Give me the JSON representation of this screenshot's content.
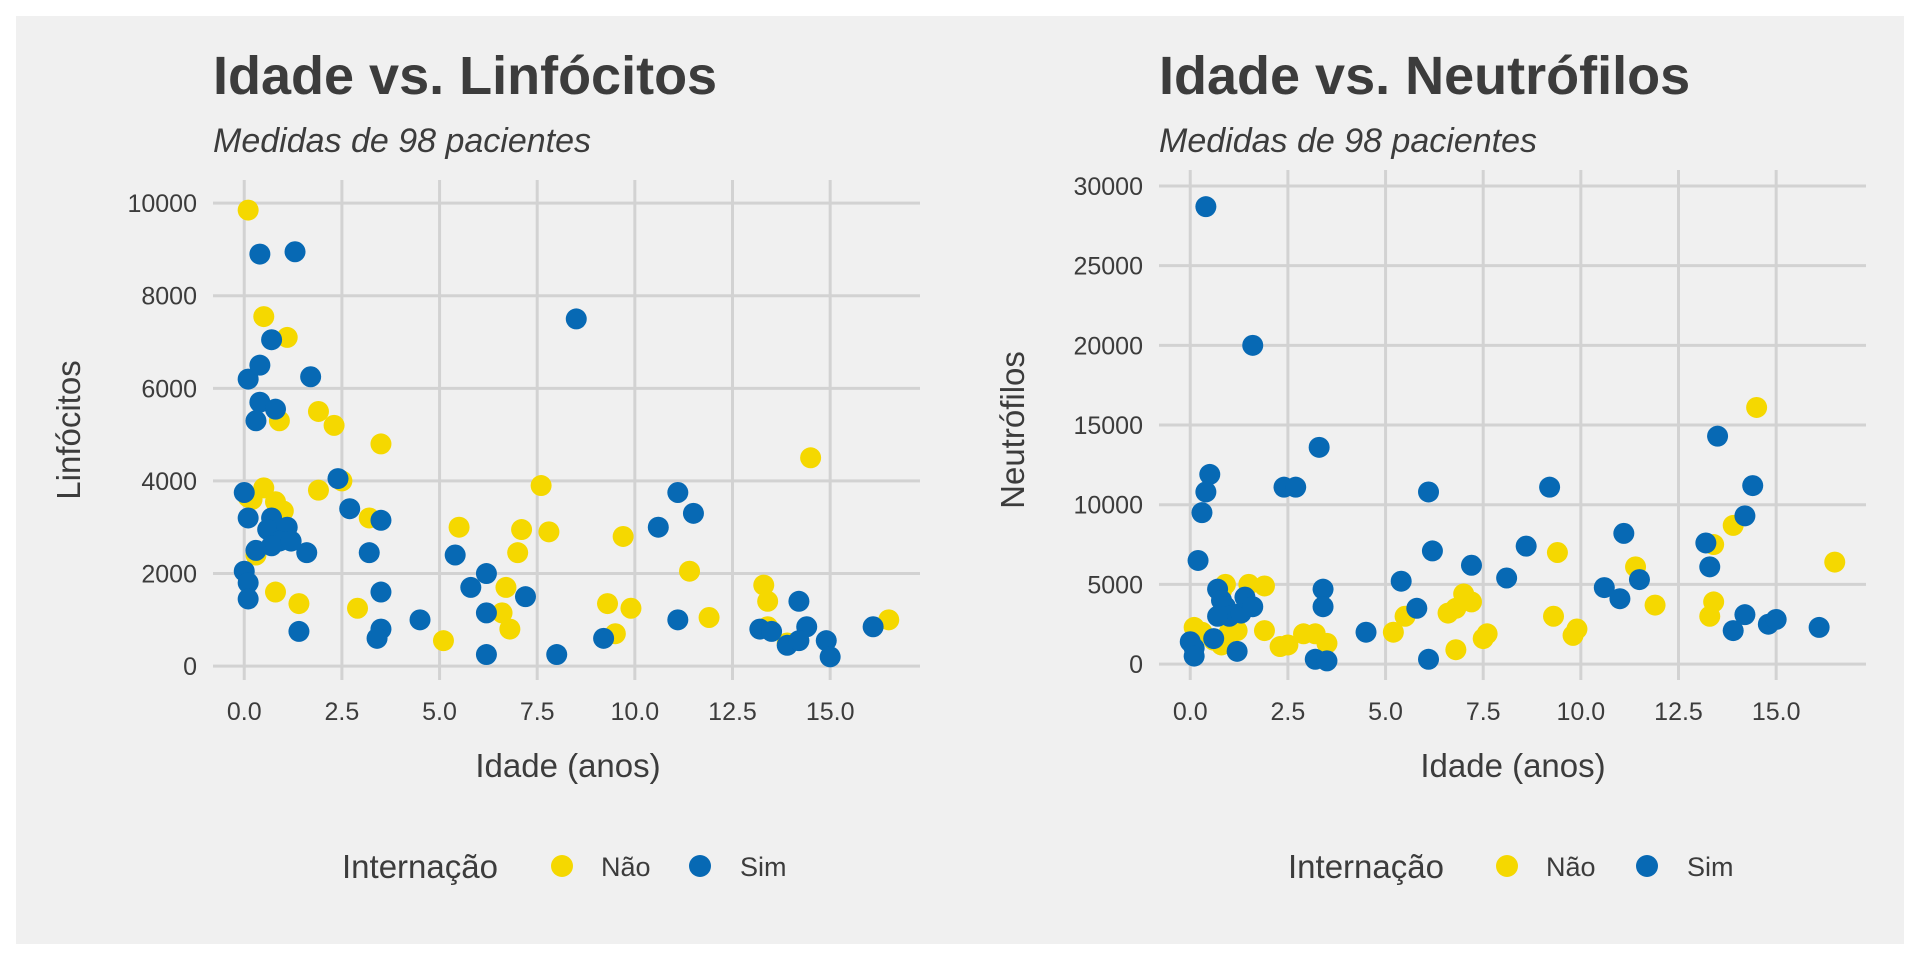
{
  "colors": {
    "background": "#f0f0f0",
    "grid": "#d2d2d2",
    "text": "#3c3c3c",
    "nao": "#f5d800",
    "sim": "#0769b4"
  },
  "legend": {
    "title": "Internação",
    "items": [
      "Não",
      "Sim"
    ]
  },
  "chart_data": [
    {
      "type": "scatter",
      "title": "Idade vs. Linfócitos",
      "subtitle": "Medidas de 98 pacientes",
      "xlabel": "Idade (anos)",
      "ylabel": "Linfócitos",
      "xlim": [
        -0.8,
        17.3
      ],
      "ylim": [
        -300,
        10500
      ],
      "xticks": [
        0,
        2.5,
        5,
        7.5,
        10,
        12.5,
        15
      ],
      "xtick_labels": [
        "0.0",
        "2.5",
        "5.0",
        "7.5",
        "10.0",
        "12.5",
        "15.0"
      ],
      "yticks": [
        0,
        2000,
        4000,
        6000,
        8000,
        10000
      ],
      "ytick_labels": [
        "0",
        "2000",
        "4000",
        "6000",
        "8000",
        "10000"
      ],
      "grid": true,
      "legend_position": "bottom",
      "series": [
        {
          "name": "Não",
          "color": "#f5d800",
          "points": [
            [
              0.1,
              9850
            ],
            [
              0.5,
              7550
            ],
            [
              1.1,
              7100
            ],
            [
              1.9,
              5500
            ],
            [
              2.3,
              5200
            ],
            [
              0.9,
              5300
            ],
            [
              3.5,
              4800
            ],
            [
              0.5,
              3850
            ],
            [
              0.1,
              3650
            ],
            [
              0.2,
              3600
            ],
            [
              0.8,
              3550
            ],
            [
              1.0,
              3350
            ],
            [
              2.5,
              4000
            ],
            [
              1.9,
              3800
            ],
            [
              3.2,
              3200
            ],
            [
              0.3,
              2400
            ],
            [
              0.8,
              1600
            ],
            [
              1.4,
              1350
            ],
            [
              2.9,
              1250
            ],
            [
              5.5,
              3000
            ],
            [
              7.6,
              3900
            ],
            [
              7.8,
              2900
            ],
            [
              7.1,
              2950
            ],
            [
              7.0,
              2450
            ],
            [
              6.7,
              1700
            ],
            [
              6.6,
              1150
            ],
            [
              6.8,
              800
            ],
            [
              5.1,
              550
            ],
            [
              9.3,
              1350
            ],
            [
              9.9,
              1250
            ],
            [
              9.7,
              2800
            ],
            [
              9.5,
              700
            ],
            [
              11.4,
              2050
            ],
            [
              11.9,
              1050
            ],
            [
              13.3,
              1750
            ],
            [
              13.4,
              1400
            ],
            [
              13.4,
              850
            ],
            [
              13.9,
              500
            ],
            [
              14.5,
              4500
            ],
            [
              16.5,
              1000
            ]
          ]
        },
        {
          "name": "Sim",
          "color": "#0769b4",
          "points": [
            [
              0.4,
              8900
            ],
            [
              1.3,
              8950
            ],
            [
              0.7,
              7050
            ],
            [
              0.1,
              6200
            ],
            [
              0.4,
              6500
            ],
            [
              1.7,
              6250
            ],
            [
              0.4,
              5700
            ],
            [
              0.3,
              5300
            ],
            [
              0.8,
              5550
            ],
            [
              0.0,
              3750
            ],
            [
              0.1,
              3200
            ],
            [
              0.7,
              3200
            ],
            [
              0.6,
              2950
            ],
            [
              1.1,
              3000
            ],
            [
              0.9,
              2700
            ],
            [
              0.7,
              2600
            ],
            [
              1.2,
              2700
            ],
            [
              0.3,
              2500
            ],
            [
              1.6,
              2450
            ],
            [
              0.0,
              2050
            ],
            [
              0.1,
              1800
            ],
            [
              0.1,
              1450
            ],
            [
              2.4,
              4050
            ],
            [
              2.7,
              3400
            ],
            [
              3.5,
              3150
            ],
            [
              3.2,
              2450
            ],
            [
              3.5,
              1600
            ],
            [
              3.5,
              800
            ],
            [
              3.4,
              600
            ],
            [
              1.4,
              750
            ],
            [
              4.5,
              1000
            ],
            [
              5.4,
              2400
            ],
            [
              5.8,
              1700
            ],
            [
              6.2,
              2000
            ],
            [
              6.2,
              1150
            ],
            [
              6.2,
              250
            ],
            [
              7.2,
              1500
            ],
            [
              8.0,
              250
            ],
            [
              8.5,
              7500
            ],
            [
              9.2,
              600
            ],
            [
              10.6,
              3000
            ],
            [
              11.1,
              3750
            ],
            [
              11.5,
              3300
            ],
            [
              11.1,
              1000
            ],
            [
              13.2,
              800
            ],
            [
              13.5,
              750
            ],
            [
              13.9,
              450
            ],
            [
              14.2,
              1400
            ],
            [
              14.4,
              850
            ],
            [
              14.2,
              550
            ],
            [
              14.9,
              550
            ],
            [
              15.0,
              200
            ],
            [
              16.1,
              850
            ]
          ]
        }
      ]
    },
    {
      "type": "scatter",
      "title": "Idade vs. Neutrófilos",
      "subtitle": "Medidas de 98 pacientes",
      "xlabel": "Idade (anos)",
      "ylabel": "Neutrófilos",
      "xlim": [
        -0.8,
        17.3
      ],
      "ylim": [
        -1000,
        31000
      ],
      "xticks": [
        0,
        2.5,
        5,
        7.5,
        10,
        12.5,
        15
      ],
      "xtick_labels": [
        "0.0",
        "2.5",
        "5.0",
        "7.5",
        "10.0",
        "12.5",
        "15.0"
      ],
      "yticks": [
        0,
        5000,
        10000,
        15000,
        20000,
        25000,
        30000
      ],
      "ytick_labels": [
        "0",
        "5000",
        "10000",
        "15000",
        "20000",
        "25000",
        "30000"
      ],
      "grid": true,
      "legend_position": "bottom",
      "series": [
        {
          "name": "Não",
          "color": "#f5d800",
          "points": [
            [
              0.1,
              2300
            ],
            [
              0.3,
              2000
            ],
            [
              0.6,
              1500
            ],
            [
              0.8,
              1200
            ],
            [
              0.9,
              5000
            ],
            [
              0.8,
              4600
            ],
            [
              1.0,
              2000
            ],
            [
              1.2,
              2100
            ],
            [
              1.5,
              5000
            ],
            [
              1.9,
              4900
            ],
            [
              1.9,
              2100
            ],
            [
              2.3,
              1100
            ],
            [
              2.5,
              1200
            ],
            [
              2.9,
              1900
            ],
            [
              3.2,
              1900
            ],
            [
              3.5,
              1300
            ],
            [
              5.2,
              2000
            ],
            [
              5.5,
              3000
            ],
            [
              6.6,
              3200
            ],
            [
              6.8,
              3500
            ],
            [
              7.0,
              4400
            ],
            [
              7.2,
              3900
            ],
            [
              6.8,
              900
            ],
            [
              7.5,
              1600
            ],
            [
              7.6,
              1900
            ],
            [
              9.3,
              3000
            ],
            [
              9.4,
              7000
            ],
            [
              9.8,
              1800
            ],
            [
              9.9,
              2200
            ],
            [
              11.4,
              6100
            ],
            [
              11.9,
              3700
            ],
            [
              13.3,
              3000
            ],
            [
              13.4,
              3900
            ],
            [
              13.4,
              7500
            ],
            [
              13.9,
              8700
            ],
            [
              14.5,
              16100
            ],
            [
              16.5,
              6400
            ]
          ]
        },
        {
          "name": "Sim",
          "color": "#0769b4",
          "points": [
            [
              0.4,
              28700
            ],
            [
              1.6,
              20000
            ],
            [
              0.5,
              11900
            ],
            [
              0.4,
              10800
            ],
            [
              0.3,
              9500
            ],
            [
              2.4,
              11100
            ],
            [
              2.7,
              11100
            ],
            [
              3.3,
              13600
            ],
            [
              0.2,
              6500
            ],
            [
              0.7,
              4700
            ],
            [
              0.8,
              4000
            ],
            [
              0.9,
              3600
            ],
            [
              1.0,
              3000
            ],
            [
              1.3,
              3200
            ],
            [
              1.4,
              4200
            ],
            [
              1.6,
              3600
            ],
            [
              0.7,
              3000
            ],
            [
              0.0,
              1400
            ],
            [
              0.1,
              1000
            ],
            [
              0.1,
              500
            ],
            [
              0.6,
              1600
            ],
            [
              1.2,
              800
            ],
            [
              3.4,
              4700
            ],
            [
              3.4,
              3600
            ],
            [
              3.2,
              300
            ],
            [
              3.5,
              200
            ],
            [
              4.5,
              2000
            ],
            [
              5.4,
              5200
            ],
            [
              5.8,
              3500
            ],
            [
              6.1,
              10800
            ],
            [
              6.2,
              7100
            ],
            [
              6.1,
              300
            ],
            [
              7.2,
              6200
            ],
            [
              8.1,
              5400
            ],
            [
              8.6,
              7400
            ],
            [
              9.2,
              11100
            ],
            [
              10.6,
              4800
            ],
            [
              11.1,
              8200
            ],
            [
              11.0,
              4100
            ],
            [
              11.5,
              5300
            ],
            [
              13.2,
              7600
            ],
            [
              13.3,
              6100
            ],
            [
              13.5,
              14300
            ],
            [
              14.2,
              9300
            ],
            [
              14.4,
              11200
            ],
            [
              14.2,
              3100
            ],
            [
              13.9,
              2100
            ],
            [
              14.8,
              2500
            ],
            [
              15.0,
              2800
            ],
            [
              16.1,
              2300
            ]
          ]
        }
      ]
    }
  ]
}
